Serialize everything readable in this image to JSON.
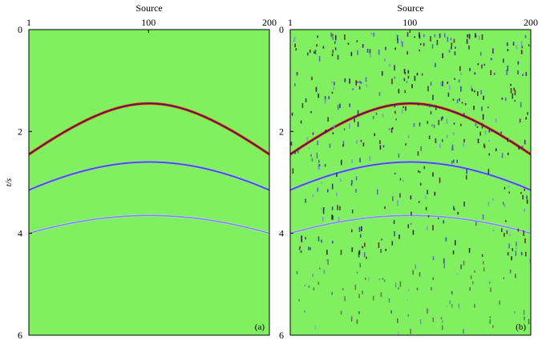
{
  "figure": {
    "background": "#80f060"
  },
  "chart_data": [
    {
      "type": "heatmap",
      "panel_label": "(a)",
      "xlabel": "Source",
      "ylabel": "t/s",
      "x_ticks": [
        1,
        100,
        200
      ],
      "y_ticks": [
        0,
        2,
        4,
        6
      ],
      "xlim": [
        1,
        200
      ],
      "ylim": [
        0,
        6
      ],
      "y_inverted": true,
      "events": [
        {
          "t_apex": 1.45,
          "t_edge": 2.45,
          "strength": "strong"
        },
        {
          "t_apex": 2.6,
          "t_edge": 3.15,
          "strength": "medium"
        },
        {
          "t_apex": 3.65,
          "t_edge": 4.0,
          "strength": "weak"
        }
      ],
      "noise": "none"
    },
    {
      "type": "heatmap",
      "panel_label": "(b)",
      "xlabel": "Source",
      "ylabel": "",
      "x_ticks": [
        1,
        100,
        200
      ],
      "y_ticks": [
        0,
        2,
        4,
        6
      ],
      "xlim": [
        1,
        200
      ],
      "ylim": [
        0,
        6
      ],
      "y_inverted": true,
      "events": [
        {
          "t_apex": 1.45,
          "t_edge": 2.45,
          "strength": "strong"
        },
        {
          "t_apex": 2.6,
          "t_edge": 3.15,
          "strength": "medium"
        },
        {
          "t_apex": 3.65,
          "t_edge": 4.0,
          "strength": "weak"
        }
      ],
      "noise": "random spikes"
    }
  ]
}
